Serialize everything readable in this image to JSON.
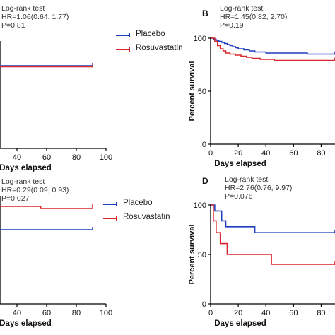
{
  "chart_data": [
    {
      "id": "A",
      "label": "",
      "type": "line",
      "stats": [
        "Log-rank test",
        "HR=1.06(0.64, 1.77)",
        "P=0.81"
      ],
      "xlabel": "Days elapsed",
      "ylabel": "",
      "xlim": [
        0,
        100
      ],
      "ylim": [
        0,
        100
      ],
      "xticks": [
        "",
        "40",
        "60",
        "80",
        "100"
      ],
      "yticks": [],
      "series": [
        {
          "name": "Placebo",
          "color": "#1f3fbf",
          "x": [
            0,
            91
          ],
          "y": [
            78,
            78
          ]
        },
        {
          "name": "Rosuvastatin",
          "color": "#d9262c",
          "x": [
            0,
            6,
            27,
            40,
            91
          ],
          "y": [
            81,
            78,
            77,
            77,
            77
          ]
        }
      ]
    },
    {
      "id": "B",
      "label": "B",
      "type": "line",
      "stats": [
        "Log-rank test",
        "HR=1.45(0.82, 2.70)",
        "P=0.19"
      ],
      "xlabel": "Days elapsed",
      "ylabel": "Percent survival",
      "xlim": [
        0,
        90
      ],
      "ylim": [
        0,
        100
      ],
      "xticks": [
        "0",
        "20",
        "40",
        "60",
        "80"
      ],
      "yticks": [
        "0",
        "50",
        "100"
      ],
      "series": [
        {
          "name": "Placebo",
          "color": "#1f3fbf",
          "x": [
            0,
            2,
            4,
            6,
            8,
            10,
            12,
            14,
            16,
            18,
            20,
            24,
            28,
            32,
            40,
            54,
            70,
            90
          ],
          "y": [
            100,
            99,
            98,
            97,
            96,
            95,
            94,
            93,
            92,
            91,
            90,
            89,
            88,
            87,
            86,
            86,
            85,
            85
          ]
        },
        {
          "name": "Rosuvastatin",
          "color": "#d9262c",
          "x": [
            0,
            3,
            5,
            7,
            9,
            11,
            14,
            18,
            22,
            26,
            30,
            36,
            46,
            90
          ],
          "y": [
            100,
            97,
            93,
            90,
            88,
            86,
            85,
            84,
            83,
            82,
            81,
            80,
            79,
            79
          ]
        }
      ]
    },
    {
      "id": "C",
      "label": "",
      "type": "line",
      "stats": [
        "Log-rank test",
        "HR=0.29(0.09, 0.93)",
        "P=0.027"
      ],
      "xlabel": "Days elapsed",
      "ylabel": "",
      "xlim": [
        0,
        100
      ],
      "ylim": [
        0,
        100
      ],
      "xticks": [
        "",
        "40",
        "60",
        "80",
        "100"
      ],
      "yticks": [],
      "series": [
        {
          "name": "Placebo",
          "color": "#1f3fbf",
          "x": [
            0,
            18,
            91
          ],
          "y": [
            75,
            70,
            70
          ]
        },
        {
          "name": "Rosuvastatin",
          "color": "#d9262c",
          "x": [
            0,
            56,
            91
          ],
          "y": [
            92,
            90,
            92
          ]
        }
      ]
    },
    {
      "id": "D",
      "label": "D",
      "type": "line",
      "stats": [
        "Log-rank test",
        "HR=2.76(0.76, 9.97)",
        "P=0.076"
      ],
      "xlabel": "Days elapsed",
      "ylabel": "Percent survival",
      "xlim": [
        0,
        90
      ],
      "ylim": [
        0,
        100
      ],
      "xticks": [
        "0",
        "20",
        "40",
        "60",
        "80"
      ],
      "yticks": [
        "0",
        "50",
        "100"
      ],
      "series": [
        {
          "name": "Placebo",
          "color": "#1f3fbf",
          "x": [
            0,
            3,
            8,
            11,
            32,
            90
          ],
          "y": [
            100,
            94,
            84,
            78,
            72,
            72
          ]
        },
        {
          "name": "Rosuvastatin",
          "color": "#d9262c",
          "x": [
            0,
            2,
            4,
            7,
            12,
            44,
            90
          ],
          "y": [
            100,
            84,
            72,
            61,
            50,
            40,
            40
          ]
        }
      ]
    }
  ],
  "legends": [
    {
      "items": [
        "Placebo",
        "Rosuvastatin"
      ]
    },
    {
      "items": [
        "Placebo",
        "Rosuvastatin"
      ]
    }
  ]
}
